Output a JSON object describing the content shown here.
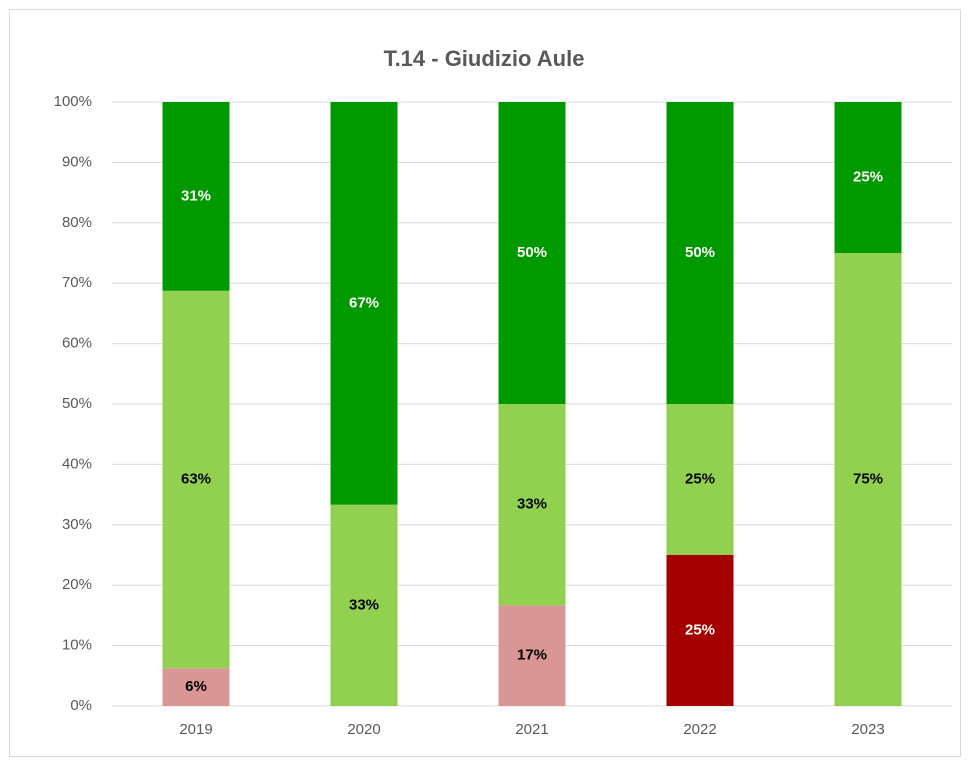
{
  "chart_data": {
    "type": "stacked_bar",
    "title": "T.14 - Giudizio Aule",
    "categories": [
      "2019",
      "2020",
      "2021",
      "2022",
      "2023"
    ],
    "series": [
      {
        "color": "#a50000",
        "label_color": "#ffffff",
        "values": [
          null,
          null,
          null,
          25,
          null
        ],
        "value_labels": [
          null,
          null,
          null,
          "25%",
          null
        ]
      },
      {
        "color": "#da9694",
        "label_color": "#000000",
        "values": [
          6.25,
          null,
          16.67,
          null,
          null
        ],
        "value_labels": [
          "6%",
          null,
          "17%",
          null,
          null
        ]
      },
      {
        "color": "#92d050",
        "label_color": "#000000",
        "values": [
          62.5,
          33.33,
          33.33,
          25,
          75
        ],
        "value_labels": [
          "63%",
          "33%",
          "33%",
          "25%",
          "75%"
        ]
      },
      {
        "color": "#009900",
        "label_color": "#ffffff",
        "values": [
          31.25,
          66.67,
          50,
          50,
          25
        ],
        "value_labels": [
          "31%",
          "67%",
          "50%",
          "50%",
          "25%"
        ]
      }
    ],
    "ylim": [
      0,
      100
    ],
    "yticks": [
      {
        "value": 0,
        "label": "0%"
      },
      {
        "value": 10,
        "label": "10%"
      },
      {
        "value": 20,
        "label": "20%"
      },
      {
        "value": 30,
        "label": "30%"
      },
      {
        "value": 40,
        "label": "40%"
      },
      {
        "value": 50,
        "label": "50%"
      },
      {
        "value": 60,
        "label": "60%"
      },
      {
        "value": 70,
        "label": "70%"
      },
      {
        "value": 80,
        "label": "80%"
      },
      {
        "value": 90,
        "label": "90%"
      },
      {
        "value": 100,
        "label": "100%"
      }
    ],
    "grid": true
  }
}
